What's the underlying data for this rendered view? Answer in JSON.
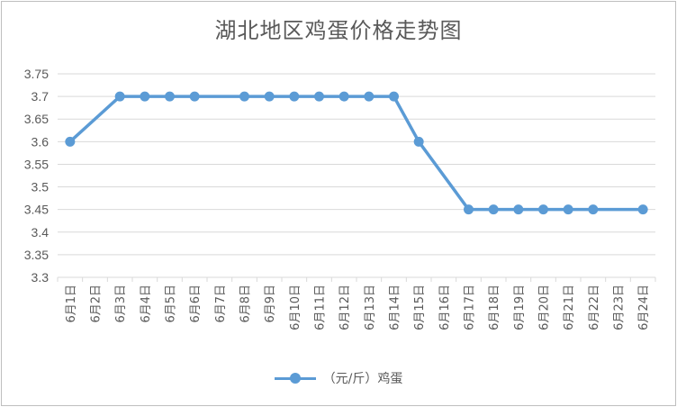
{
  "chart_data": {
    "type": "line",
    "title": "湖北地区鸡蛋价格走势图",
    "categories": [
      "6月1日",
      "6月2日",
      "6月3日",
      "6月4日",
      "6月5日",
      "6月6日",
      "6月7日",
      "6月8日",
      "6月9日",
      "6月10日",
      "6月11日",
      "6月12日",
      "6月13日",
      "6月14日",
      "6月15日",
      "6月16日",
      "6月17日",
      "6月18日",
      "6月19日",
      "6月20日",
      "6月21日",
      "6月22日",
      "6月23日",
      "6月24日"
    ],
    "series": [
      {
        "name": "（元/斤）鸡蛋",
        "color": "#5b9bd5",
        "values": [
          3.6,
          null,
          3.7,
          3.7,
          3.7,
          3.7,
          null,
          3.7,
          3.7,
          3.7,
          3.7,
          3.7,
          3.7,
          3.7,
          3.6,
          null,
          3.45,
          3.45,
          3.45,
          3.45,
          3.45,
          3.45,
          null,
          3.45
        ]
      }
    ],
    "y_ticks": [
      "3.3",
      "3.35",
      "3.4",
      "3.45",
      "3.5",
      "3.55",
      "3.6",
      "3.65",
      "3.7",
      "3.75"
    ],
    "ylim": [
      3.3,
      3.75
    ],
    "grid": true,
    "legend_position": "bottom"
  }
}
